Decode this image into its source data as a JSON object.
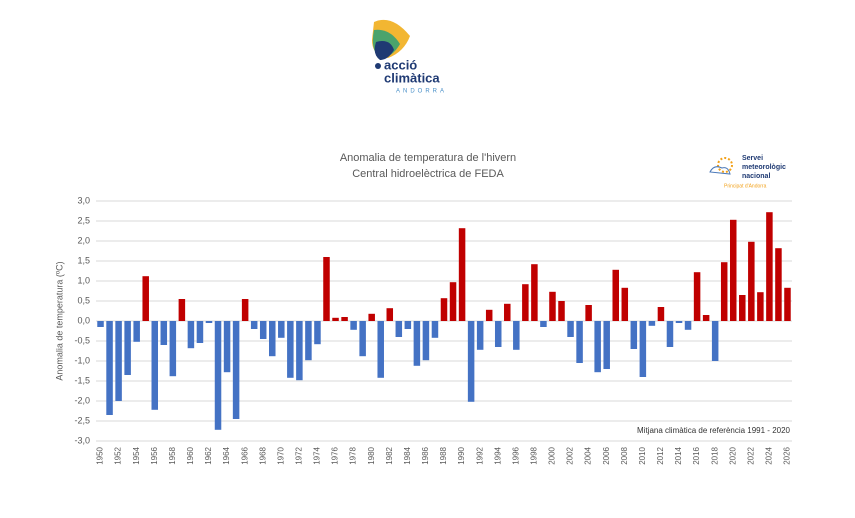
{
  "header": {
    "logo_line1": "acció",
    "logo_line2": "climàtica",
    "logo_line3": "ANDORRA"
  },
  "badge": {
    "line1": "Servei",
    "line2": "meteorològic",
    "line3": "nacional",
    "line4": "Principat d'Andorra"
  },
  "chart_data": {
    "type": "bar",
    "title": "Anomalia de temperatura de l'hivern",
    "subtitle": "Central hidroelèctrica de FEDA",
    "y_label": "Anomalia de temperatura (ºC)",
    "annotation": "Mitjana climàtica de referència 1991 - 2020",
    "positive_color": "#c00000",
    "negative_color": "#4472c4",
    "grid": true,
    "categories": [
      "1950",
      null,
      "1952",
      null,
      "1954",
      null,
      "1956",
      null,
      "1958",
      null,
      "1960",
      null,
      "1962",
      null,
      "1964",
      null,
      "1966",
      null,
      "1968",
      null,
      "1970",
      null,
      "1972",
      null,
      "1974",
      null,
      "1976",
      null,
      "1978",
      null,
      "1980",
      null,
      "1982",
      null,
      "1984",
      null,
      "1986",
      null,
      "1988",
      null,
      "1990",
      null,
      "1992",
      null,
      "1994",
      null,
      "1996",
      null,
      "1998",
      null,
      "2000",
      null,
      "2002",
      null,
      "2004",
      null,
      "2006",
      null,
      "2008",
      null,
      "2010",
      null,
      "2012",
      null,
      "2014",
      null,
      "2016",
      null,
      "2018",
      null,
      "2020",
      null,
      "2022",
      null,
      "2024",
      null,
      "2026"
    ],
    "values": [
      -0.15,
      -2.35,
      -2.0,
      -1.35,
      -0.52,
      1.12,
      -2.22,
      -0.6,
      -1.38,
      0.55,
      -0.68,
      -0.55,
      -0.05,
      -2.72,
      -1.28,
      -2.45,
      0.55,
      -0.2,
      -0.45,
      -0.88,
      -0.42,
      -1.42,
      -1.48,
      -0.98,
      -0.58,
      1.6,
      0.08,
      0.1,
      -0.22,
      -0.88,
      0.18,
      -1.42,
      0.32,
      -0.4,
      -0.2,
      -1.12,
      -0.98,
      -0.42,
      0.57,
      0.97,
      2.32,
      -2.02,
      -0.72,
      0.28,
      -0.65,
      0.43,
      -0.72,
      0.92,
      1.42,
      -0.15,
      0.73,
      0.5,
      -0.4,
      -1.05,
      0.4,
      -1.28,
      -1.2,
      1.28,
      0.83,
      -0.7,
      -1.4,
      -0.12,
      0.35,
      -0.65,
      -0.05,
      -0.22,
      1.22,
      0.15,
      -1.0,
      1.47,
      2.53,
      0.65,
      1.98,
      0.72,
      2.72,
      1.82,
      0.83
    ],
    "ylim": [
      -3,
      3
    ],
    "yticks": [
      {
        "value": -3,
        "label": "-3,0"
      },
      {
        "value": -2.5,
        "label": "-2,5"
      },
      {
        "value": -2,
        "label": "-2,0"
      },
      {
        "value": -1.5,
        "label": "-1,5"
      },
      {
        "value": -1,
        "label": "-1,0"
      },
      {
        "value": -0.5,
        "label": "-0,5"
      },
      {
        "value": 0,
        "label": "0,0"
      },
      {
        "value": 0.5,
        "label": "0,5"
      },
      {
        "value": 1,
        "label": "1,0"
      },
      {
        "value": 1.5,
        "label": "1,5"
      },
      {
        "value": 2,
        "label": "2,0"
      },
      {
        "value": 2.5,
        "label": "2,5"
      },
      {
        "value": 3,
        "label": "3,0"
      }
    ]
  }
}
